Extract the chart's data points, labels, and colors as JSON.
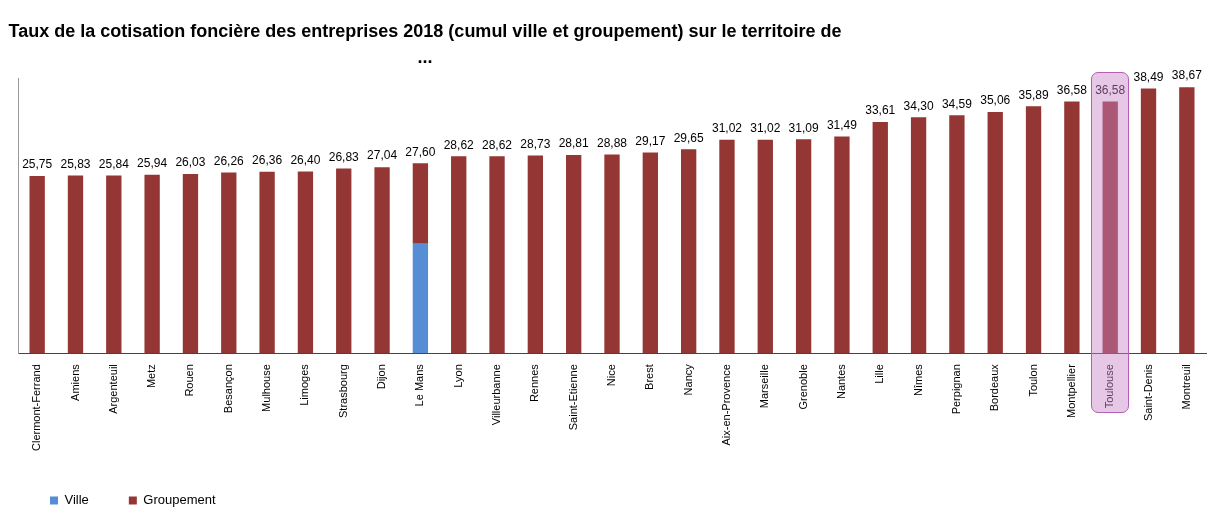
{
  "chart_data": {
    "type": "bar",
    "stacked": true,
    "title": "Taux de la cotisation foncière des entreprises 2018 (cumul ville et groupement) sur le territoire de ...",
    "categories": [
      "Clermont-Ferrand",
      "Amiens",
      "Argenteuil",
      "Metz",
      "Rouen",
      "Besançon",
      "Mulhouse",
      "Limoges",
      "Strasbourg",
      "Dijon",
      "Le Mans",
      "Lyon",
      "Villeurbanne",
      "Rennes",
      "Saint-Etienne",
      "Nice",
      "Brest",
      "Nancy",
      "Aix-en-Provence",
      "Marseille",
      "Grenoble",
      "Nantes",
      "Lille",
      "Nîmes",
      "Perpignan",
      "Bordeaux",
      "Toulon",
      "Montpellier",
      "Toulouse",
      "Saint-Denis",
      "Montreuil"
    ],
    "series": [
      {
        "name": "Ville",
        "color": "#558ed5",
        "values": [
          null,
          null,
          null,
          null,
          null,
          null,
          null,
          null,
          null,
          null,
          15.9,
          null,
          null,
          null,
          null,
          null,
          null,
          null,
          null,
          null,
          null,
          null,
          null,
          null,
          null,
          null,
          null,
          null,
          null,
          null,
          null
        ]
      },
      {
        "name": "Groupement",
        "color": "#943634",
        "values": [
          25.75,
          25.83,
          25.84,
          25.94,
          26.03,
          26.26,
          26.36,
          26.4,
          26.83,
          27.04,
          11.7,
          28.62,
          28.62,
          28.73,
          28.81,
          28.88,
          29.17,
          29.65,
          31.02,
          31.02,
          31.09,
          31.49,
          33.61,
          34.3,
          34.59,
          35.06,
          35.89,
          36.58,
          36.58,
          38.49,
          38.67
        ],
        "value_labels": [
          "25,75",
          "25,83",
          "25,84",
          "25,94",
          "26,03",
          "26,26",
          "26,36",
          "26,40",
          "26,83",
          "27,04",
          null,
          "28,62",
          "28,62",
          "28,73",
          "28,81",
          "28,88",
          "29,17",
          "29,65",
          "31,02",
          "31,02",
          "31,09",
          "31,49",
          "33,61",
          "34,30",
          "34,59",
          "35,06",
          "35,89",
          "36,58",
          "36,58",
          "38,49",
          "38,67"
        ]
      }
    ],
    "totals": [
      null,
      null,
      null,
      null,
      null,
      null,
      null,
      null,
      null,
      null,
      "27,60",
      null,
      null,
      null,
      null,
      null,
      null,
      null,
      null,
      null,
      null,
      null,
      null,
      null,
      null,
      null,
      null,
      null,
      null,
      null,
      null
    ],
    "legend": "bottom"
  }
}
